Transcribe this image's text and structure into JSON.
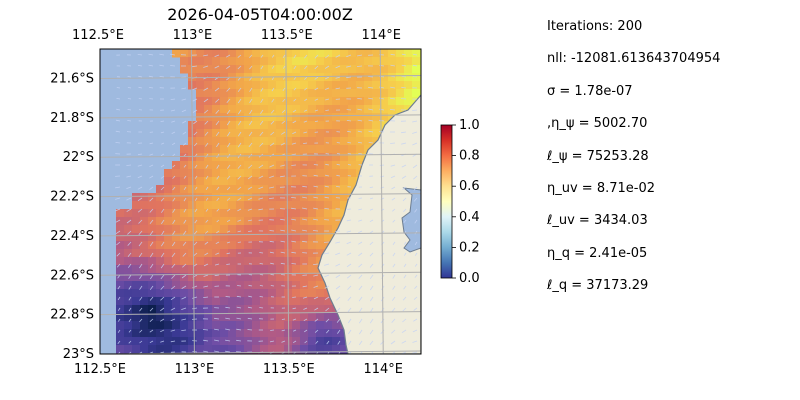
{
  "chart_data": {
    "type": "heatmap",
    "title": "2026-04-05T04:00:00Z",
    "xlabel": "",
    "ylabel": "",
    "x_ticks": [
      "112.5°E",
      "113°E",
      "113.5°E",
      "114°E"
    ],
    "x_tick_values": [
      112.5,
      113.0,
      113.5,
      114.0
    ],
    "y_ticks": [
      "21.6°S",
      "21.8°S",
      "22°S",
      "22.2°S",
      "22.4°S",
      "22.6°S",
      "22.8°S",
      "23°S"
    ],
    "y_tick_values": [
      -21.6,
      -21.8,
      -22.0,
      -22.2,
      -22.4,
      -22.6,
      -22.8,
      -23.0
    ],
    "xlim": [
      112.5,
      114.2
    ],
    "ylim": [
      -23.0,
      -21.45
    ],
    "colorbar": {
      "ticks": [
        "0.0",
        "0.2",
        "0.4",
        "0.6",
        "0.8",
        "1.0"
      ],
      "tick_values": [
        0.0,
        0.2,
        0.4,
        0.6,
        0.8,
        1.0
      ],
      "range": [
        0.0,
        1.0
      ],
      "colormap": "RdYlBu_r"
    },
    "grid": true,
    "overlay": "vector arrows (currents)",
    "land_color": "#efecdc",
    "ocean_color": "#9fbadf"
  },
  "stats": [
    "Iterations: 200",
    "nll: -12081.613643704954",
    "σ = 1.78e-07",
    ",η_ψ = 5002.70",
    "ℓ_ψ = 75253.28",
    "η_uv = 8.71e-02",
    "ℓ_uv = 3434.03",
    "η_q = 2.41e-05",
    "ℓ_q = 37173.29"
  ]
}
